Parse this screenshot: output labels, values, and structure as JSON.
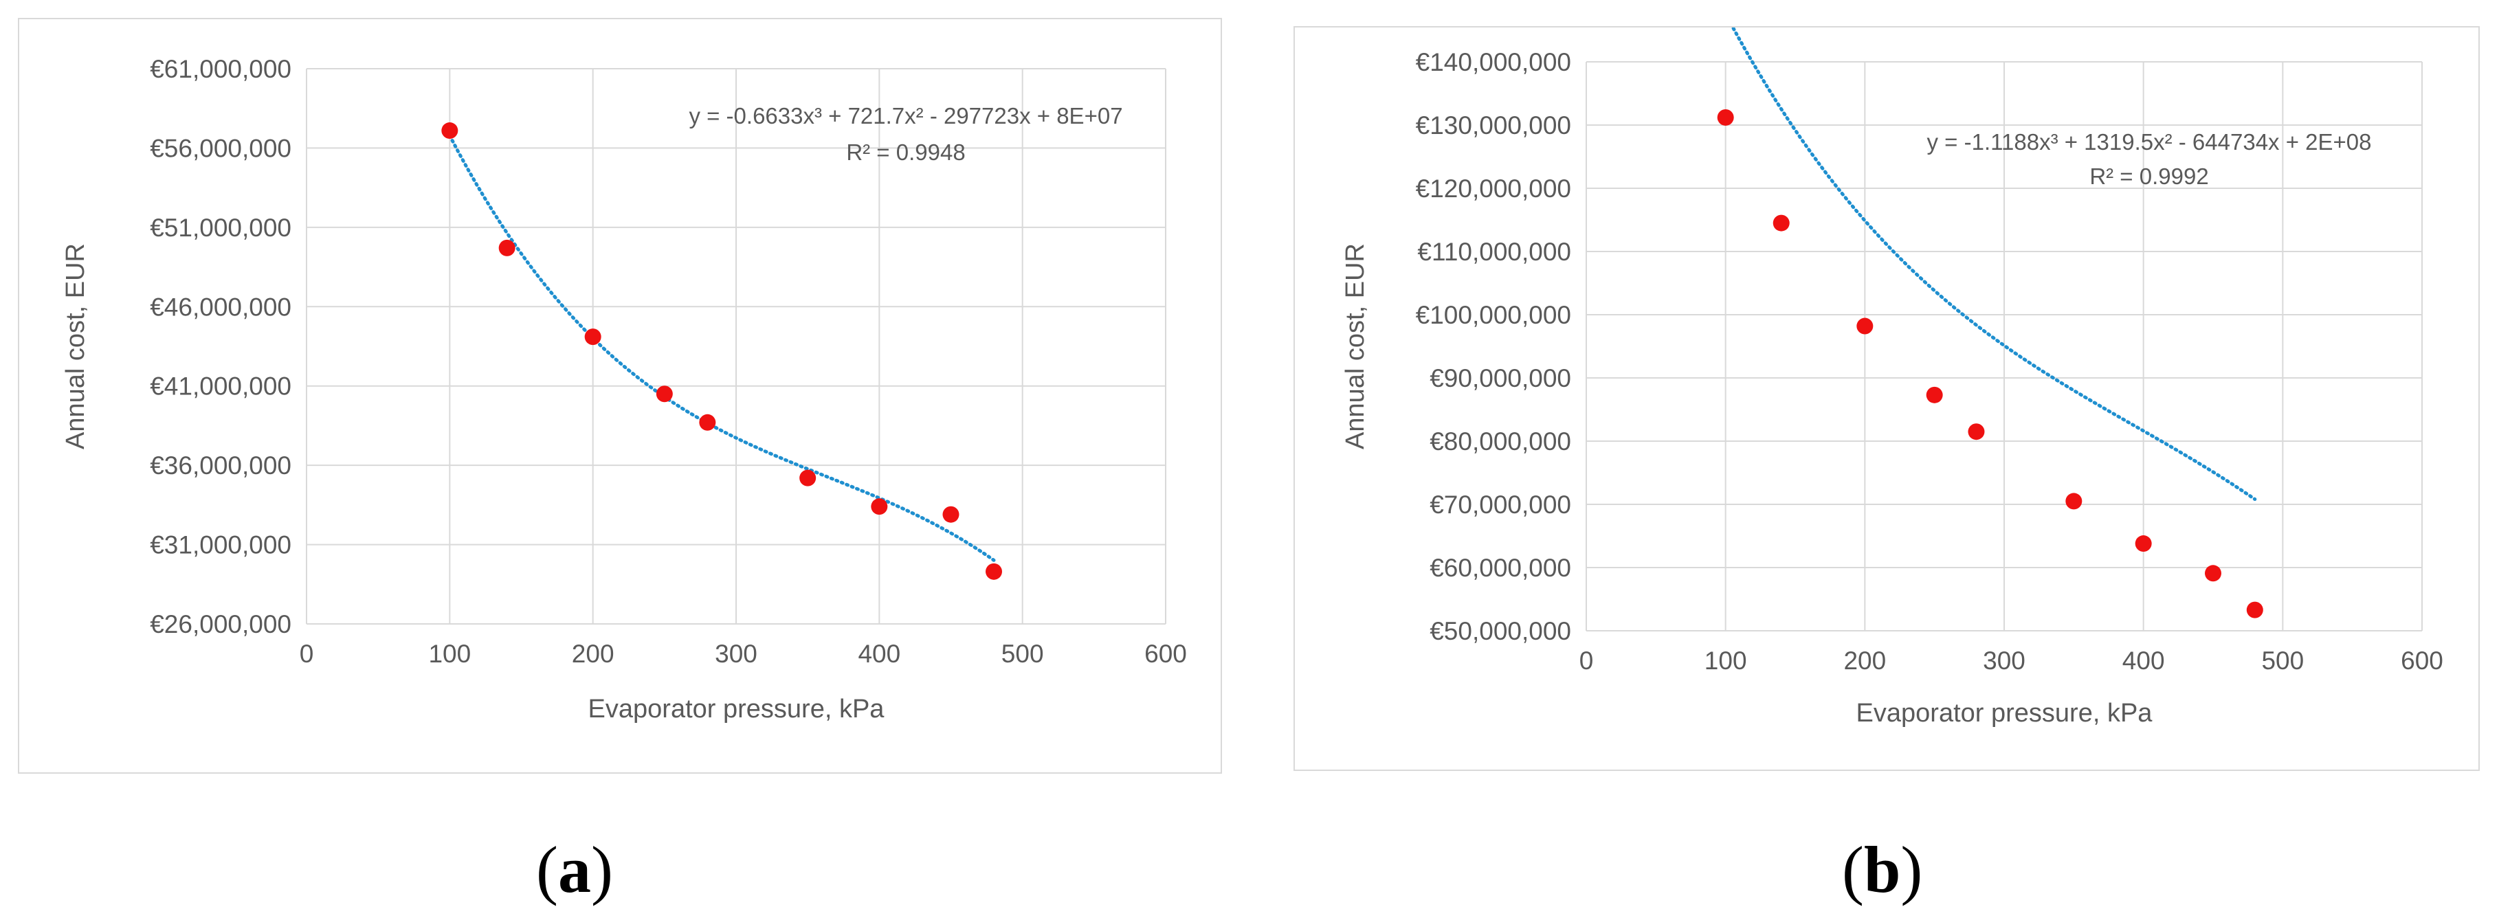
{
  "chart_data": [
    {
      "type": "scatter",
      "panel": "a",
      "xlabel": "Evaporator pressure, kPa",
      "ylabel": "Annual cost, EUR",
      "xlim": [
        0,
        600
      ],
      "ylim": [
        26000000,
        61000000
      ],
      "x_ticks": [
        0,
        100,
        200,
        300,
        400,
        500,
        600
      ],
      "y_ticks": [
        26000000,
        31000000,
        36000000,
        41000000,
        46000000,
        51000000,
        56000000,
        61000000
      ],
      "x_tick_labels": [
        "0",
        "100",
        "200",
        "300",
        "400",
        "500",
        "600"
      ],
      "y_tick_labels": [
        "€26,000,000",
        "€31,000,000",
        "€36,000,000",
        "€41,000,000",
        "€46,000,000",
        "€51,000,000",
        "€56,000,000",
        "€61,000,000"
      ],
      "grid": true,
      "series": [
        {
          "x": [
            100,
            140,
            200,
            250,
            280,
            350,
            400,
            450,
            480
          ],
          "values": [
            57100000,
            49700000,
            44100000,
            40500000,
            38700000,
            35200000,
            33400000,
            32900000,
            29300000
          ],
          "color": "#ee1111"
        }
      ],
      "trendline": {
        "kind": "polynomial",
        "order": 3,
        "coefficients": [
          -0.6633,
          721.7,
          -297723,
          80000000
        ],
        "x_range": [
          100,
          480
        ],
        "color": "#1f8fcf",
        "style": "dotted"
      },
      "annotations": [
        "y = -0.6633x³ + 721.7x² - 297723x + 8E+07",
        "R² = 0.9948"
      ]
    },
    {
      "type": "scatter",
      "panel": "b",
      "xlabel": "Evaporator pressure, kPa",
      "ylabel": "Annual cost, EUR",
      "xlim": [
        0,
        600
      ],
      "ylim": [
        50000000,
        140000000
      ],
      "x_ticks": [
        0,
        100,
        200,
        300,
        400,
        500,
        600
      ],
      "y_ticks": [
        50000000,
        60000000,
        70000000,
        80000000,
        90000000,
        100000000,
        110000000,
        120000000,
        130000000,
        140000000
      ],
      "x_tick_labels": [
        "0",
        "100",
        "200",
        "300",
        "400",
        "500",
        "600"
      ],
      "y_tick_labels": [
        "€50,000,000",
        "€60,000,000",
        "€70,000,000",
        "€80,000,000",
        "€90,000,000",
        "€100,000,000",
        "€110,000,000",
        "€120,000,000",
        "€130,000,000",
        "€140,000,000"
      ],
      "grid": true,
      "series": [
        {
          "x": [
            100,
            140,
            200,
            250,
            280,
            350,
            400,
            450,
            480
          ],
          "values": [
            131200000,
            114500000,
            98200000,
            87300000,
            81500000,
            70500000,
            63800000,
            59100000,
            53300000
          ],
          "color": "#ee1111"
        }
      ],
      "trendline": {
        "kind": "polynomial",
        "order": 3,
        "coefficients": [
          -1.1188,
          1319.5,
          -644734,
          200000000
        ],
        "x_range": [
          100,
          480
        ],
        "color": "#1f8fcf",
        "style": "dotted"
      },
      "annotations": [
        "y = -1.1188x³ + 1319.5x² - 644734x + 2E+08",
        "R² = 0.9992"
      ]
    }
  ],
  "captions": {
    "a": "a",
    "b": "b"
  }
}
